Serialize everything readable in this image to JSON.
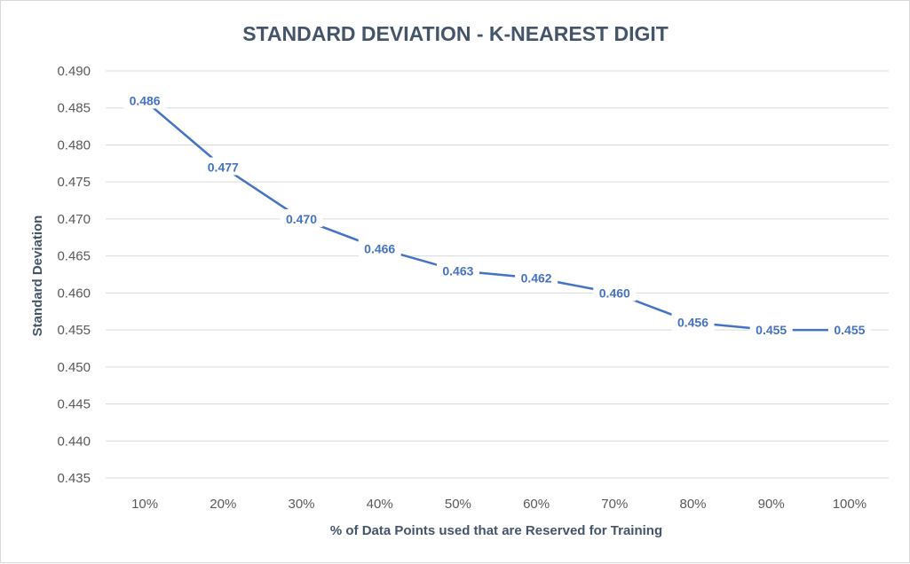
{
  "chart_data": {
    "type": "line",
    "title": "STANDARD DEVIATION - K-NEAREST DIGIT",
    "xlabel": "% of Data Points used that are Reserved for Training",
    "ylabel": "Standard Deviation",
    "categories": [
      "10%",
      "20%",
      "30%",
      "40%",
      "50%",
      "60%",
      "70%",
      "80%",
      "90%",
      "100%"
    ],
    "series": [
      {
        "values": [
          0.486,
          0.477,
          0.47,
          0.466,
          0.463,
          0.462,
          0.46,
          0.456,
          0.455,
          0.455
        ],
        "labels": [
          "0.486",
          "0.477",
          "0.470",
          "0.466",
          "0.463",
          "0.462",
          "0.460",
          "0.456",
          "0.455",
          "0.455"
        ],
        "color": "#4472c4"
      }
    ],
    "ylim": [
      0.435,
      0.49
    ],
    "yticks": [
      "0.435",
      "0.440",
      "0.445",
      "0.450",
      "0.455",
      "0.460",
      "0.465",
      "0.470",
      "0.475",
      "0.480",
      "0.485",
      "0.490"
    ],
    "grid": true,
    "legend": "none"
  }
}
